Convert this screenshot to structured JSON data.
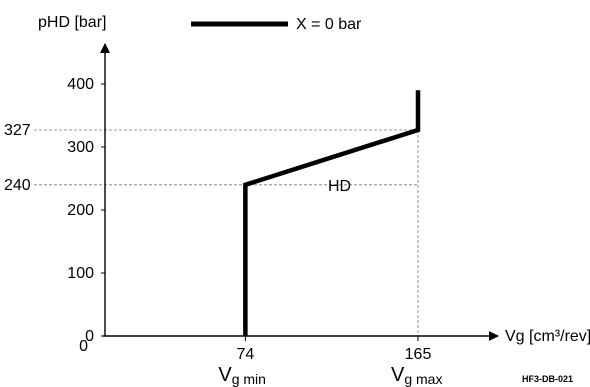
{
  "chart_data": {
    "type": "line",
    "title": "",
    "xlabel": "Vg [cm³/rev]",
    "ylabel": "pHD [bar]",
    "xlim": [
      0,
      165
    ],
    "ylim": [
      0,
      400
    ],
    "y_ticks": [
      0,
      100,
      200,
      300,
      400
    ],
    "x_ticks": [
      74,
      165
    ],
    "x_tick_categories": [
      {
        "value": 74,
        "label_main": "V",
        "label_sub": "g min"
      },
      {
        "value": 165,
        "label_main": "V",
        "label_sub": "g max"
      }
    ],
    "y_reference_lines": [
      {
        "value": 327,
        "label": "327"
      },
      {
        "value": 240,
        "label": "240"
      }
    ],
    "series": [
      {
        "name": "X = 0 bar",
        "label": "HD",
        "x": [
          74,
          74,
          165,
          165
        ],
        "y": [
          0,
          240,
          327,
          390
        ]
      }
    ],
    "legend": {
      "position": "top-center"
    },
    "grid": false,
    "annotations": [
      "HF3-DB-021"
    ]
  }
}
